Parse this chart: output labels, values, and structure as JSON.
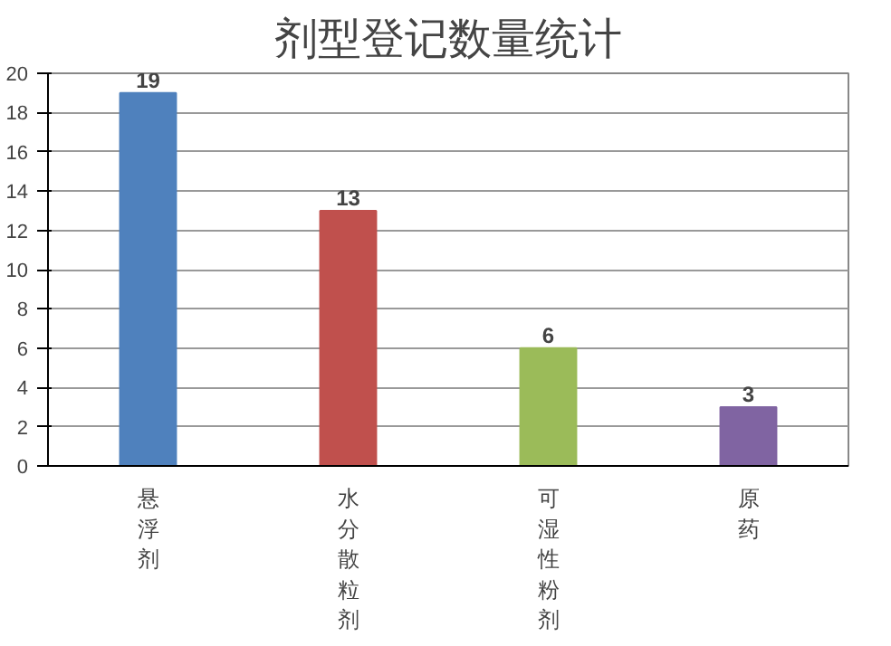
{
  "chart_data": {
    "type": "bar",
    "title": "剂型登记数量统计",
    "categories": [
      "悬浮剂",
      "水分散粒剂",
      "可湿性粉剂",
      "原药"
    ],
    "values": [
      19,
      13,
      6,
      3
    ],
    "colors": [
      "#4f81bd",
      "#c0504d",
      "#9bbb59",
      "#8064a2"
    ],
    "ylim": [
      0,
      20
    ],
    "yticks": [
      0,
      2,
      4,
      6,
      8,
      10,
      12,
      14,
      16,
      18,
      20
    ],
    "grid": "y",
    "data_labels": true
  }
}
